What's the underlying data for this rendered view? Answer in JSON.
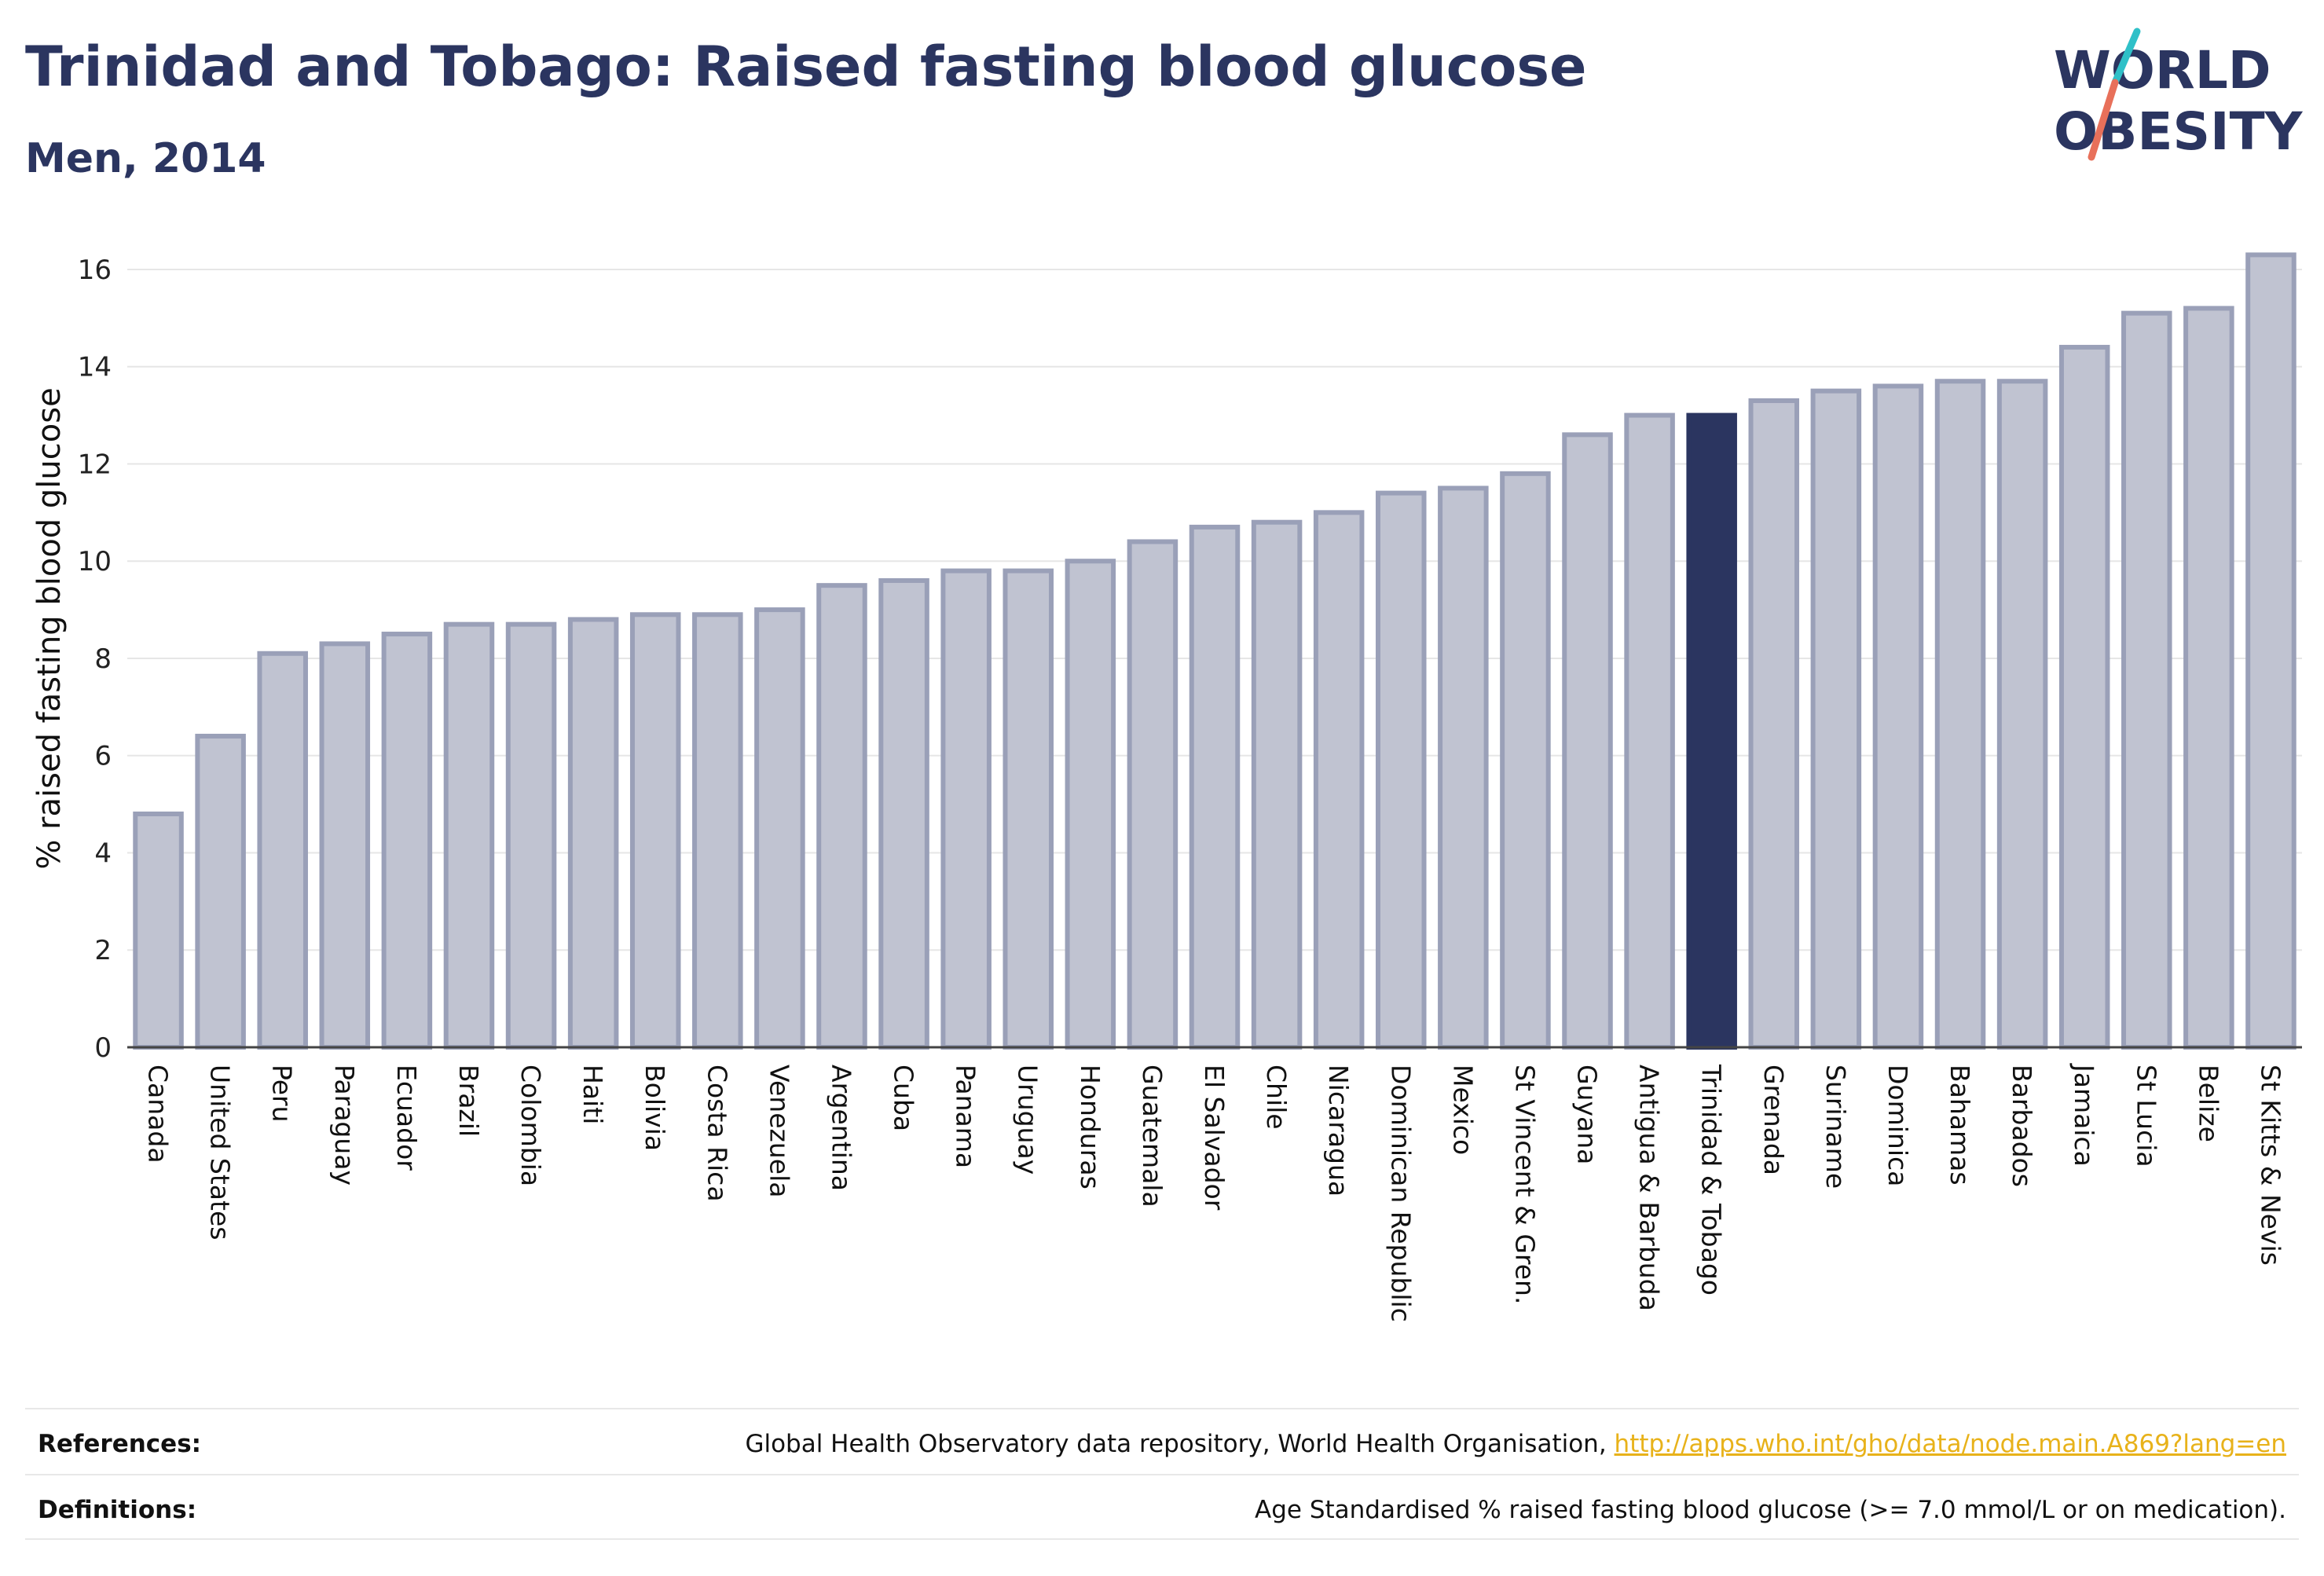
{
  "title": "Trinidad and Tobago: Raised fasting blood glucose",
  "subtitle": "Men, 2014",
  "logo": {
    "line1": "WORLD",
    "line2": "OBESITY",
    "slash_color_top": "#2fc0c8",
    "slash_color_bottom": "#e8705a"
  },
  "colors": {
    "bar": "#c0c3d1",
    "bar_edge": "#9aa0b8",
    "highlight": "#2b3560",
    "text": "#2b3560",
    "link": "#e8b21a"
  },
  "chart_data": {
    "type": "bar",
    "title": "Trinidad and Tobago: Raised fasting blood glucose",
    "subtitle": "Men, 2014",
    "ylabel": "% raised fasting blood glucose",
    "xlabel": "",
    "ylim": [
      0,
      16.5
    ],
    "yticks": [
      0,
      2,
      4,
      6,
      8,
      10,
      12,
      14,
      16
    ],
    "grid": true,
    "highlight": "Trinidad & Tobago",
    "categories": [
      "Canada",
      "United States",
      "Peru",
      "Paraguay",
      "Ecuador",
      "Brazil",
      "Colombia",
      "Haiti",
      "Bolivia",
      "Costa Rica",
      "Venezuela",
      "Argentina",
      "Cuba",
      "Panama",
      "Uruguay",
      "Honduras",
      "Guatemala",
      "El Salvador",
      "Chile",
      "Nicaragua",
      "Dominican Republic",
      "Mexico",
      "St Vincent & Gren.",
      "Guyana",
      "Antigua & Barbuda",
      "Trinidad & Tobago",
      "Grenada",
      "Suriname",
      "Dominica",
      "Bahamas",
      "Barbados",
      "Jamaica",
      "St Lucia",
      "Belize",
      "St Kitts & Nevis"
    ],
    "values": [
      4.8,
      6.4,
      8.1,
      8.3,
      8.5,
      8.7,
      8.7,
      8.8,
      8.9,
      8.9,
      9.0,
      9.5,
      9.6,
      9.8,
      9.8,
      10.0,
      10.4,
      10.7,
      10.8,
      11.0,
      11.4,
      11.5,
      11.8,
      12.6,
      13.0,
      13.0,
      13.3,
      13.5,
      13.6,
      13.7,
      13.7,
      14.4,
      15.1,
      15.2,
      16.3
    ]
  },
  "footer": {
    "references_label": "References:",
    "references_text": "Global Health Observatory data repository, World Health Organisation, ",
    "references_link": "http://apps.who.int/gho/data/node.main.A869?lang=en",
    "definitions_label": "Definitions:",
    "definitions_text": "Age Standardised % raised fasting blood glucose (>= 7.0 mmol/L or on medication)."
  }
}
